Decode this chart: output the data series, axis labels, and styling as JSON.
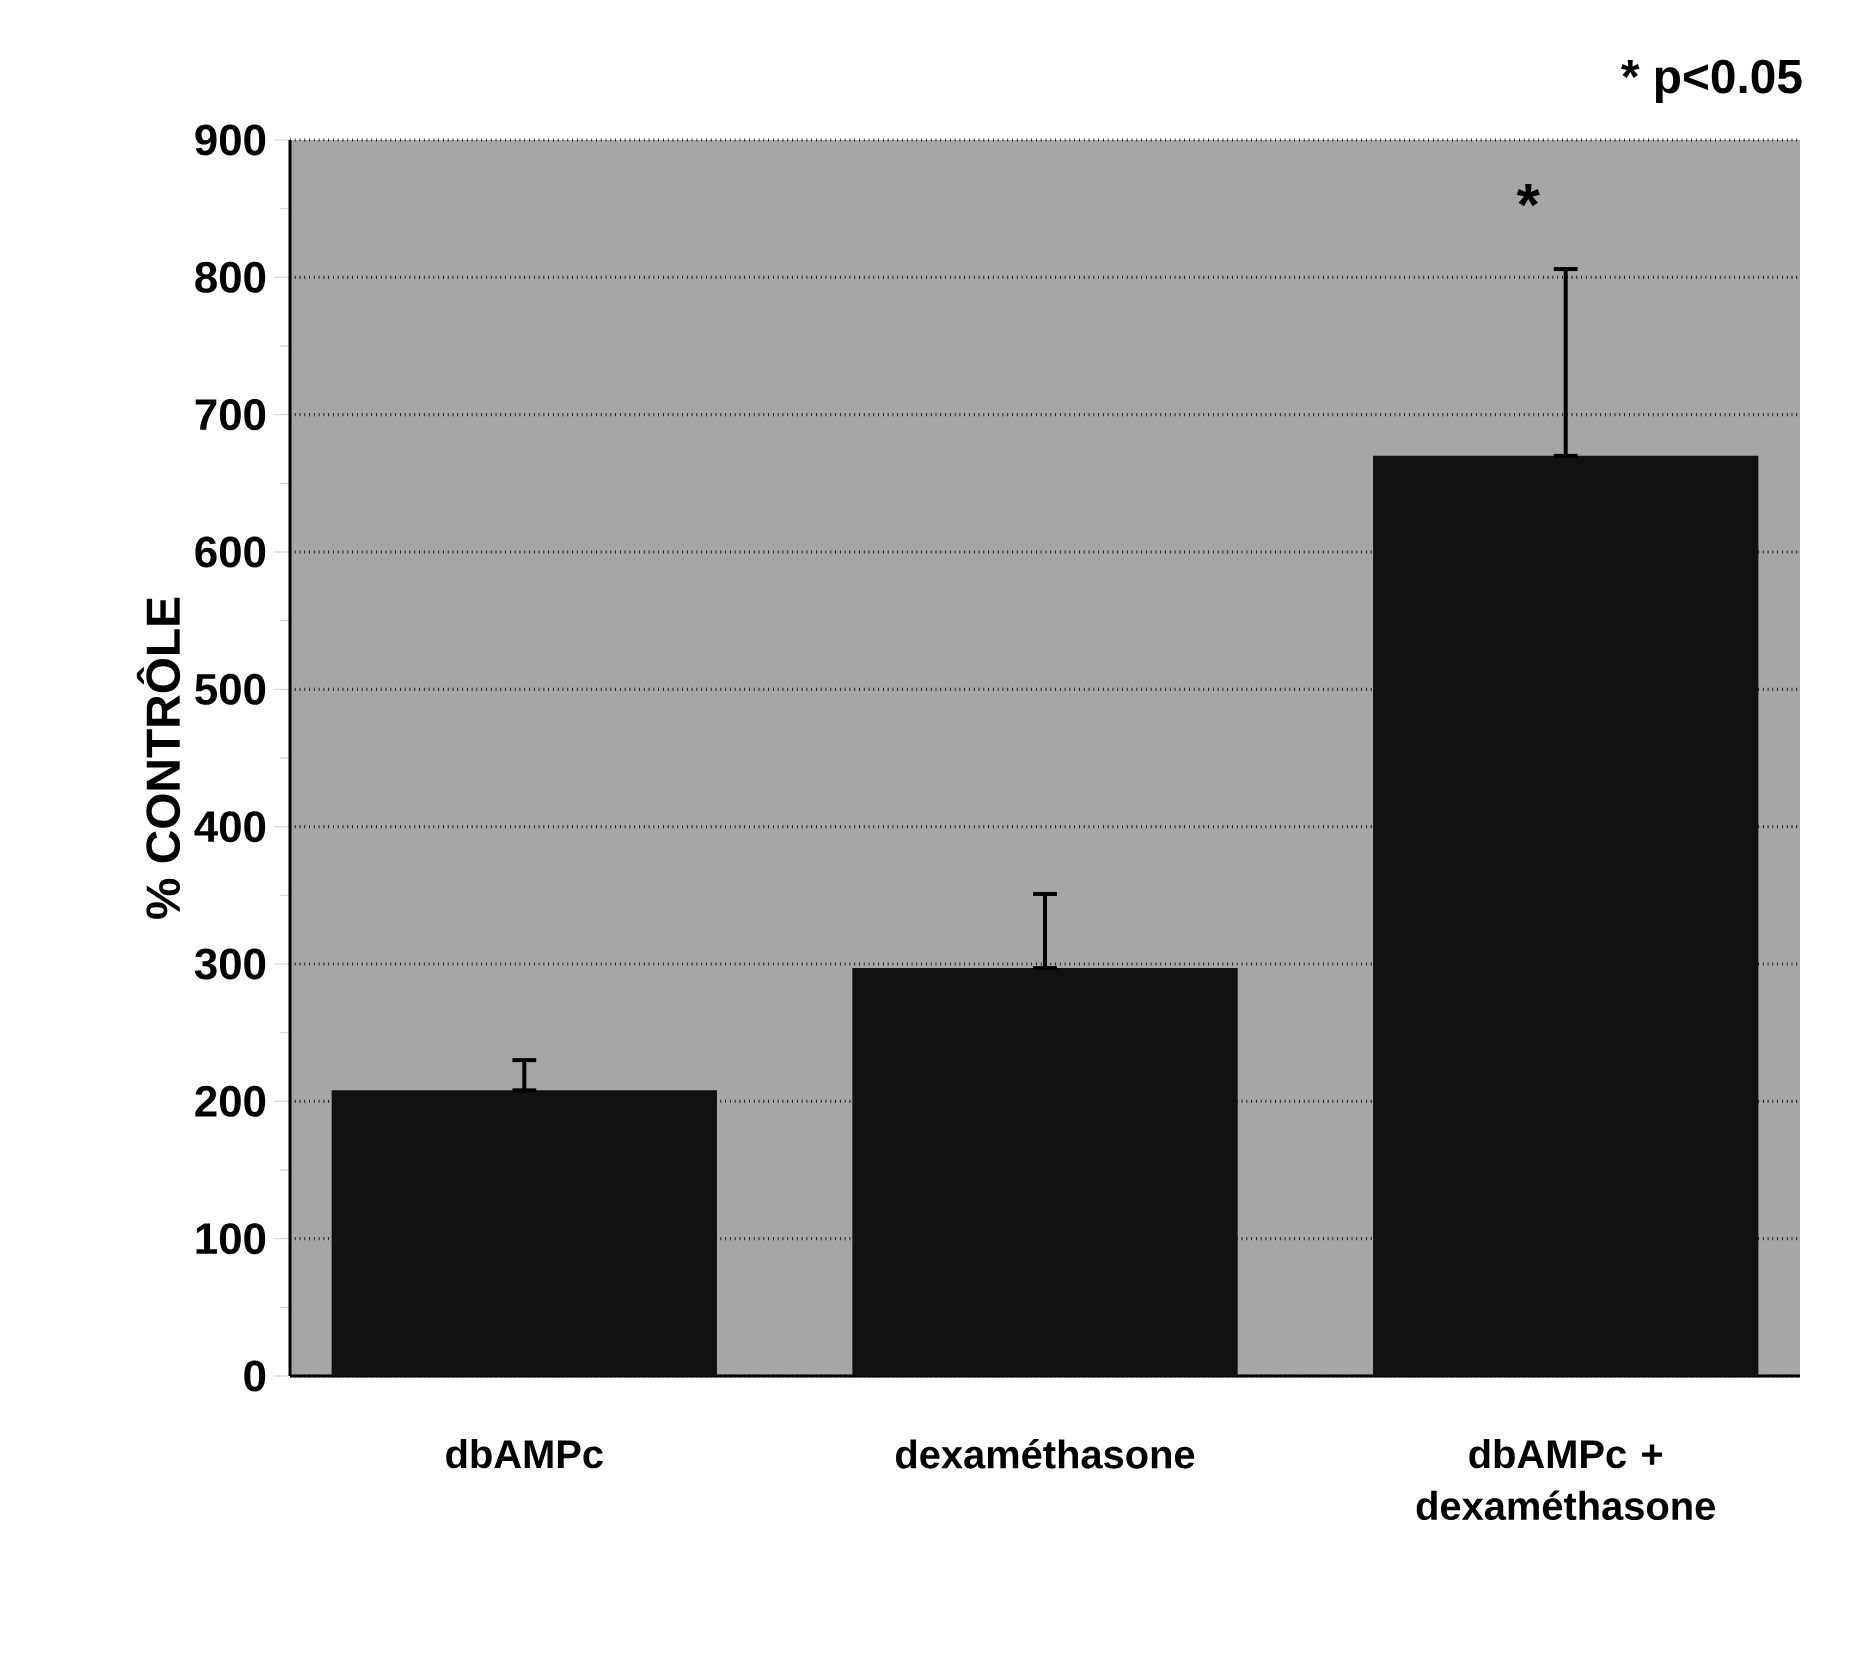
{
  "chart_data": {
    "type": "bar",
    "ylabel": "% CONTRÔLE",
    "categories": [
      "dbAMPc",
      "dexaméthasone",
      "dbAMPc + dexaméthasone"
    ],
    "values": [
      208,
      297,
      670
    ],
    "errors": [
      [
        208,
        230
      ],
      [
        297,
        351
      ],
      [
        670,
        806
      ]
    ],
    "color": "#111111",
    "ylim": [
      0,
      900
    ],
    "yticks": [
      0,
      100,
      200,
      300,
      400,
      500,
      600,
      700,
      800,
      900
    ],
    "grid": "y",
    "annotations": [
      "* p<0.05",
      "*"
    ]
  }
}
